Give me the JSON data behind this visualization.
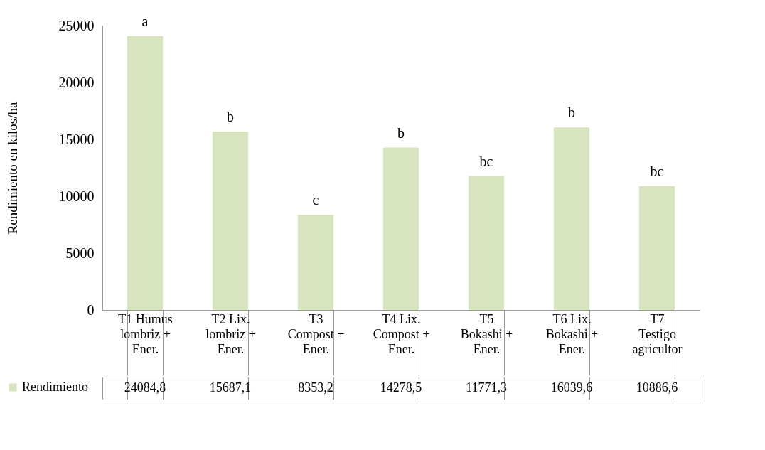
{
  "chart_data": {
    "type": "bar",
    "ylabel": "Rendimiento en kilos/ha",
    "categories": [
      "T1 Humus lombriz + Ener.",
      "T2 Lix. lombriz + Ener.",
      "T3 Compost + Ener.",
      "T4  Lix. Compost + Ener.",
      "T5 Bokashi + Ener.",
      "T6 Lix. Bokashi + Ener.",
      "T7 Testigo agricultor"
    ],
    "series": [
      {
        "name": "Rendimiento",
        "color": "#d7e4bd",
        "values": [
          24084.8,
          15687.1,
          8353.2,
          14278.5,
          11771.3,
          16039.6,
          10886.6
        ]
      }
    ],
    "ylim": [
      0,
      25000
    ],
    "yticks": [
      0,
      5000,
      10000,
      15000,
      20000,
      25000
    ],
    "value_labels": [
      "24084,8",
      "15687,1",
      "8353,2",
      "14278,5",
      "11771,3",
      "16039,6",
      "10886,6"
    ],
    "legend": "bottom left",
    "annotations": [
      {
        "text": "a",
        "x": "T1 Humus lombriz + Ener.",
        "y": 24084.8
      },
      {
        "text": "b",
        "x": "T2 Lix. lombriz + Ener.",
        "y": 15687.1
      },
      {
        "text": "c",
        "x": "T3 Compost + Ener.",
        "y": 8353.2
      },
      {
        "text": "b",
        "x": "T4  Lix. Compost + Ener.",
        "y": 14278.5
      },
      {
        "text": "bc",
        "x": "T5 Bokashi + Ener.",
        "y": 11771.3
      },
      {
        "text": "b",
        "x": "T6 Lix. Bokashi + Ener.",
        "y": 16039.6
      },
      {
        "text": "bc",
        "x": "T7 Testigo agricultor",
        "y": 10886.6
      }
    ]
  }
}
